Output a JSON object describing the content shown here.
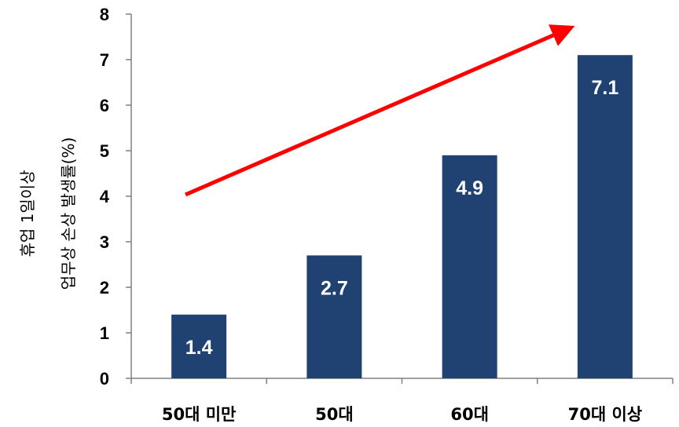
{
  "chart_data": {
    "type": "bar",
    "categories": [
      "50대 미만",
      "50대",
      "60대",
      "70대 이상"
    ],
    "values": [
      1.4,
      2.7,
      4.9,
      7.1
    ],
    "data_labels": [
      "1.4",
      "2.7",
      "4.9",
      "7.1"
    ],
    "title": "",
    "xlabel": "",
    "ylabel_lines": [
      "휴업 1일이상",
      "업무상 손상 발생률(%)"
    ],
    "ylim": [
      0,
      8
    ],
    "yticks": [
      0,
      1,
      2,
      3,
      4,
      5,
      6,
      7,
      8
    ],
    "grid": false,
    "legend": "none",
    "annotation": "trend-arrow (increasing)",
    "colors": {
      "bar": "#1F4272",
      "arrow": "#FF0000",
      "axis": "#808080"
    }
  }
}
